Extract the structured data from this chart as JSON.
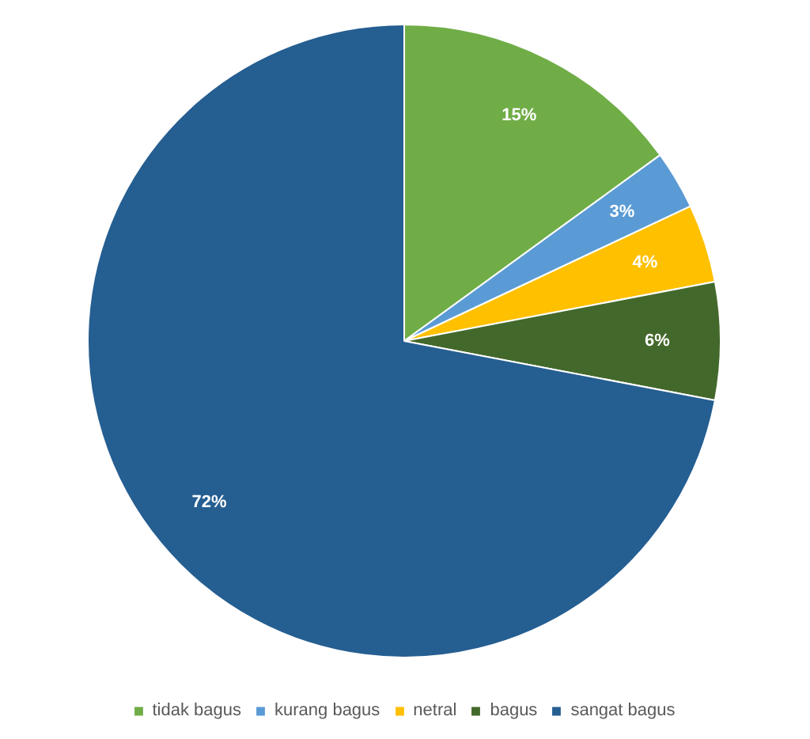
{
  "chart_data": {
    "type": "pie",
    "categories": [
      "tidak bagus",
      "kurang bagus",
      "netral",
      "bagus",
      "sangat bagus"
    ],
    "values": [
      15,
      3,
      4,
      6,
      72
    ],
    "colors": [
      "#70ad47",
      "#5b9bd5",
      "#ffc000",
      "#43682b",
      "#255e91"
    ],
    "value_labels": [
      "15%",
      "3%",
      "4%",
      "6%",
      "72%"
    ],
    "legend": "bottom"
  }
}
